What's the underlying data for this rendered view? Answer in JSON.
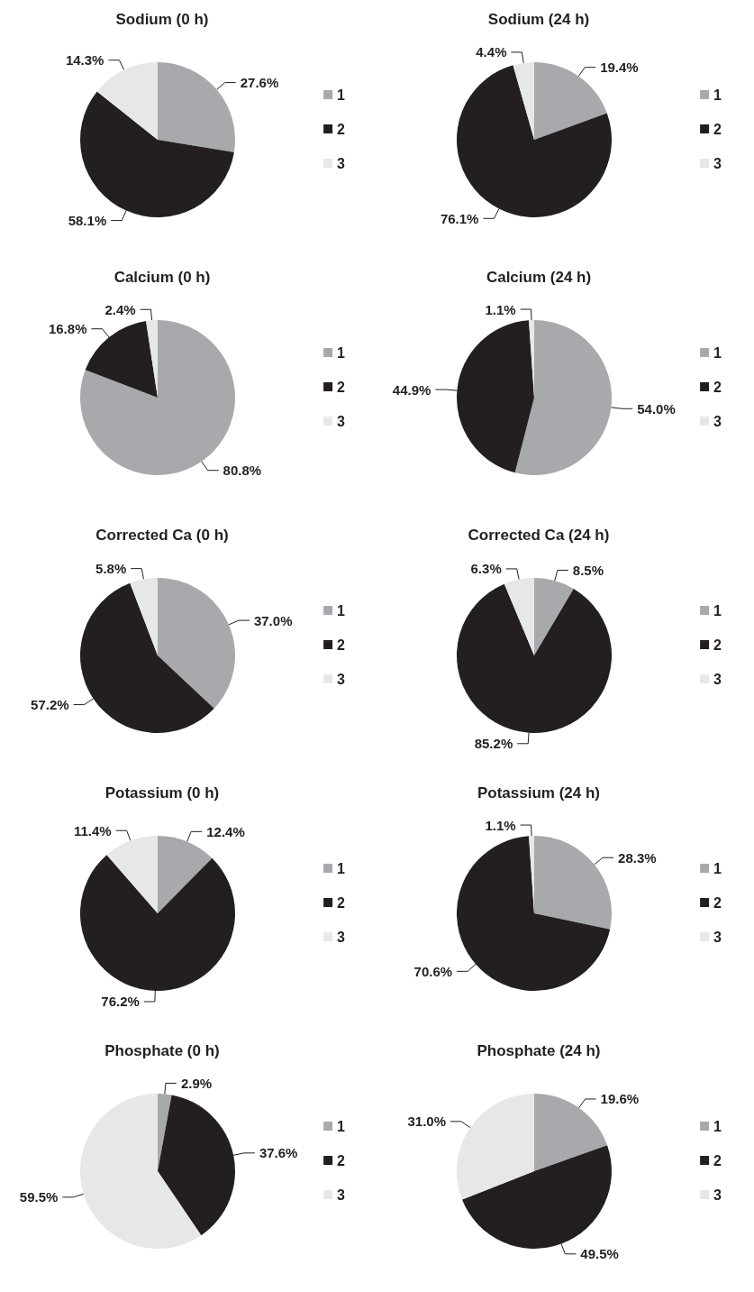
{
  "chart_data": [
    {
      "type": "pie",
      "title": "Sodium (0 h)",
      "categories": [
        "1",
        "2",
        "3"
      ],
      "values": [
        27.6,
        58.1,
        14.3
      ],
      "value_labels": [
        "27.6%",
        "58.1%",
        "14.3%"
      ],
      "colors": [
        "#a7a9ac",
        "#231f20",
        "#e6e7e8"
      ],
      "legend": "right"
    },
    {
      "type": "pie",
      "title": "Sodium (24 h)",
      "categories": [
        "1",
        "2",
        "3"
      ],
      "values": [
        19.4,
        76.1,
        4.4
      ],
      "value_labels": [
        "19.4%",
        "76.1%",
        "4.4%"
      ],
      "colors": [
        "#a7a9ac",
        "#231f20",
        "#e6e7e8"
      ],
      "legend": "right"
    },
    {
      "type": "pie",
      "title": "Calcium (0 h)",
      "categories": [
        "1",
        "2",
        "3"
      ],
      "values": [
        80.8,
        16.8,
        2.4
      ],
      "value_labels": [
        "80.8%",
        "16.8%",
        "2.4%"
      ],
      "colors": [
        "#a7a9ac",
        "#231f20",
        "#e6e7e8"
      ],
      "legend": "right"
    },
    {
      "type": "pie",
      "title": "Calcium (24 h)",
      "categories": [
        "1",
        "2",
        "3"
      ],
      "values": [
        54.0,
        44.9,
        1.1
      ],
      "value_labels": [
        "54.0%",
        "44.9%",
        "1.1%"
      ],
      "colors": [
        "#a7a9ac",
        "#231f20",
        "#e6e7e8"
      ],
      "legend": "right"
    },
    {
      "type": "pie",
      "title": "Corrected Ca (0 h)",
      "categories": [
        "1",
        "2",
        "3"
      ],
      "values": [
        37.0,
        57.2,
        5.8
      ],
      "value_labels": [
        "37.0%",
        "57.2%",
        "5.8%"
      ],
      "colors": [
        "#a7a9ac",
        "#231f20",
        "#e6e7e8"
      ],
      "legend": "right"
    },
    {
      "type": "pie",
      "title": "Corrected Ca (24 h)",
      "categories": [
        "1",
        "2",
        "3"
      ],
      "values": [
        8.5,
        85.2,
        6.3
      ],
      "value_labels": [
        "8.5%",
        "85.2%",
        "6.3%"
      ],
      "colors": [
        "#a7a9ac",
        "#231f20",
        "#e6e7e8"
      ],
      "legend": "right"
    },
    {
      "type": "pie",
      "title": "Potassium (0 h)",
      "categories": [
        "1",
        "2",
        "3"
      ],
      "values": [
        12.4,
        76.2,
        11.4
      ],
      "value_labels": [
        "12.4%",
        "76.2%",
        "11.4%"
      ],
      "colors": [
        "#a7a9ac",
        "#231f20",
        "#e6e7e8"
      ],
      "legend": "right"
    },
    {
      "type": "pie",
      "title": "Potassium (24 h)",
      "categories": [
        "1",
        "2",
        "3"
      ],
      "values": [
        28.3,
        70.6,
        1.1
      ],
      "value_labels": [
        "28.3%",
        "70.6%",
        "1.1%"
      ],
      "colors": [
        "#a7a9ac",
        "#231f20",
        "#e6e7e8"
      ],
      "legend": "right"
    },
    {
      "type": "pie",
      "title": "Phosphate (0 h)",
      "categories": [
        "1",
        "2",
        "3"
      ],
      "values": [
        2.9,
        37.6,
        59.5
      ],
      "value_labels": [
        "2.9%",
        "37.6%",
        "59.5%"
      ],
      "colors": [
        "#a7a9ac",
        "#231f20",
        "#e6e7e8"
      ],
      "legend": "right"
    },
    {
      "type": "pie",
      "title": "Phosphate (24 h)",
      "categories": [
        "1",
        "2",
        "3"
      ],
      "values": [
        19.6,
        49.5,
        31.0
      ],
      "value_labels": [
        "19.6%",
        "49.5%",
        "31.0%"
      ],
      "colors": [
        "#a7a9ac",
        "#231f20",
        "#e6e7e8"
      ],
      "legend": "right"
    }
  ]
}
